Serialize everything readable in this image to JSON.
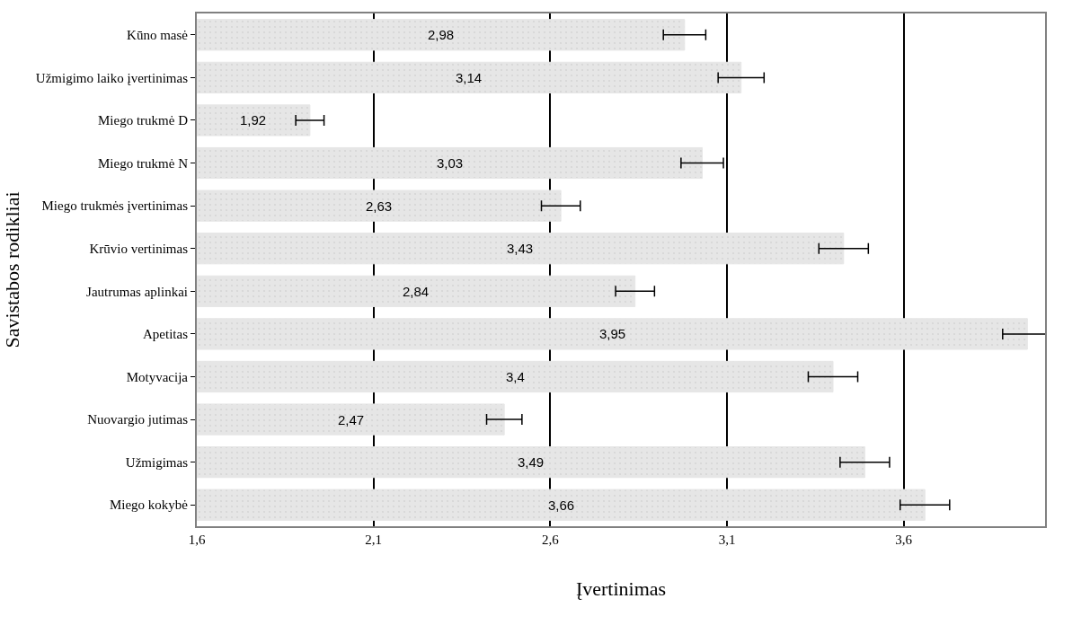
{
  "chart_data": {
    "type": "bar",
    "orientation": "horizontal",
    "xlabel": "Įvertinimas",
    "ylabel": "Savistabos rodikliai",
    "categories": [
      "Kūno masė",
      "Užmigimo laiko įvertinimas",
      "Miego trukmė D",
      "Miego trukmė N",
      "Miego trukmės įvertinimas",
      "Krūvio vertinimas",
      "Jautrumas aplinkai",
      "Apetitas",
      "Motyvacija",
      "Nuovargio jutimas",
      "Užmigimas",
      "Miego kokybė"
    ],
    "values": [
      2.98,
      3.14,
      1.92,
      3.03,
      2.63,
      3.43,
      2.84,
      3.95,
      3.4,
      2.47,
      3.49,
      3.66
    ],
    "value_labels": [
      "2,98",
      "3,14",
      "1,92",
      "3,03",
      "2,63",
      "3,43",
      "2,84",
      "3,95",
      "3,4",
      "2,47",
      "3,49",
      "3,66"
    ],
    "errors": [
      0.06,
      0.065,
      0.04,
      0.06,
      0.055,
      0.07,
      0.055,
      0.07,
      0.07,
      0.05,
      0.07,
      0.07
    ],
    "color": "#e6e6e6",
    "xlim": [
      1.6,
      4.0
    ],
    "xticks": [
      {
        "value": 1.6,
        "label": "1,6"
      },
      {
        "value": 2.1,
        "label": "2,1"
      },
      {
        "value": 2.6,
        "label": "2,6"
      },
      {
        "value": 3.1,
        "label": "3,1"
      },
      {
        "value": 3.6,
        "label": "3,6"
      }
    ],
    "grid": "x"
  }
}
